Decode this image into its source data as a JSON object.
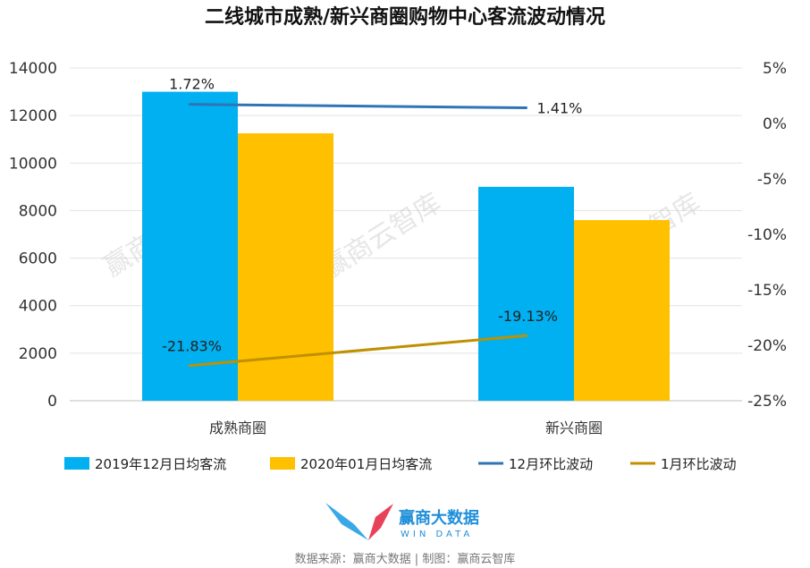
{
  "chart_data": {
    "type": "bar",
    "title": "二线城市成熟/新兴商圈购物中心客流波动情况",
    "categories": [
      "成熟商圈",
      "新兴商圈"
    ],
    "series": [
      {
        "name": "2019年12月日均客流",
        "type": "bar",
        "axis": "left",
        "color": "#00b0f0",
        "values": [
          13000,
          9000
        ]
      },
      {
        "name": "2020年01月日均客流",
        "type": "bar",
        "axis": "left",
        "color": "#ffc000",
        "values": [
          11250,
          7600
        ]
      },
      {
        "name": "12月环比波动",
        "type": "line",
        "axis": "right",
        "color": "#2e75b6",
        "values": [
          1.72,
          1.41
        ],
        "labels": [
          "1.72%",
          "1.41%"
        ]
      },
      {
        "name": "1月环比波动",
        "type": "line",
        "axis": "right",
        "color": "#bf9000",
        "values": [
          -21.83,
          -19.13
        ],
        "labels": [
          "-21.83%",
          "-19.13%"
        ]
      }
    ],
    "y_left": {
      "min": 0,
      "max": 14000,
      "ticks": [
        "0",
        "2000",
        "4000",
        "6000",
        "8000",
        "10000",
        "12000",
        "14000"
      ]
    },
    "y_right": {
      "min": -25,
      "max": 5,
      "ticks": [
        "-25%",
        "-20%",
        "-15%",
        "-10%",
        "-5%",
        "0%",
        "5%"
      ]
    },
    "grid": true,
    "legend_position": "bottom"
  },
  "watermark": "赢商云智库",
  "brand": {
    "name": "赢商大数据",
    "sub": "WIN DATA"
  },
  "source": "数据来源：赢商大数据 | 制图：赢商云智库"
}
